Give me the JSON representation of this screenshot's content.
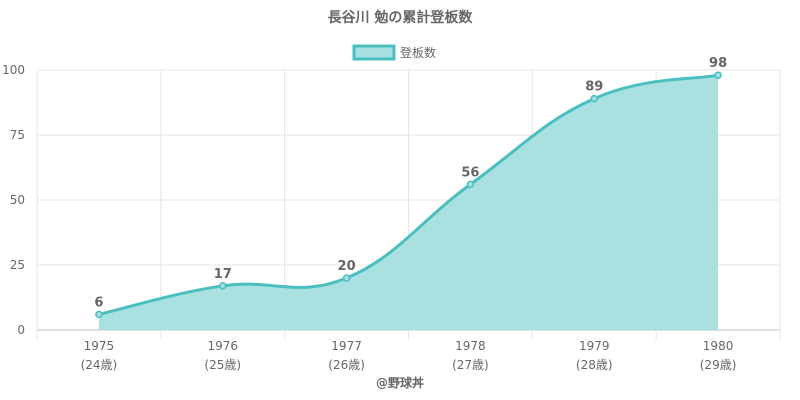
{
  "chart_data": {
    "type": "area",
    "title": "長谷川 勉の累計登板数",
    "series": [
      {
        "name": "登板数",
        "values": [
          6,
          17,
          20,
          56,
          89,
          98
        ]
      }
    ],
    "categories": [
      "1975",
      "1976",
      "1977",
      "1978",
      "1979",
      "1980"
    ],
    "category_sublabels": [
      "(24歳)",
      "(25歳)",
      "(26歳)",
      "(27歳)",
      "(28歳)",
      "(29歳)"
    ],
    "ylim": [
      0,
      100
    ],
    "yticks": [
      0,
      25,
      50,
      75,
      100
    ],
    "grid": true,
    "legend_position": "top",
    "colors": {
      "line": "#4bbfbf",
      "fill": "#a6dfdf",
      "grid": "#e6e6e6",
      "axis": "#bdbdbd",
      "text": "#666666"
    }
  },
  "credit": "@野球丼"
}
